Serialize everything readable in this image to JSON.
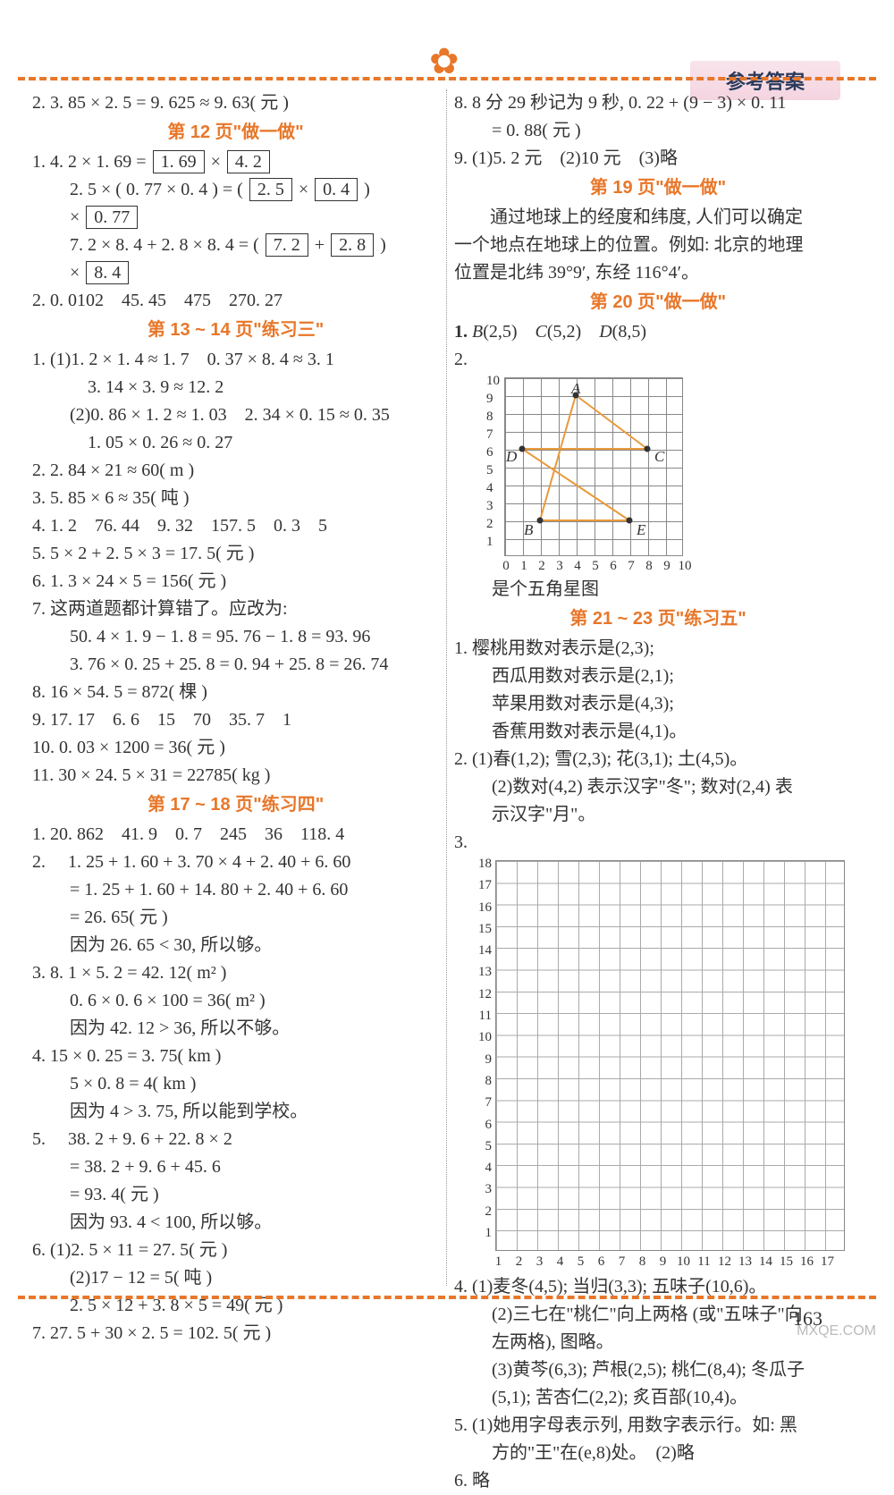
{
  "header": {
    "tag": "参考答案",
    "page_num": "163",
    "watermark": "MXQE.COM"
  },
  "section_titles": {
    "p12": "第 12 页\"做一做\"",
    "p13_14": "第 13 ~ 14 页\"练习三\"",
    "p17_18": "第 17 ~ 18 页\"练习四\"",
    "p19": "第 19 页\"做一做\"",
    "p20": "第 20 页\"做一做\"",
    "p21_23": "第 21 ~ 23 页\"练习五\""
  },
  "left": {
    "l0": "2. 3. 85 × 2. 5 = 9. 625 ≈ 9. 63( 元 )",
    "l1a": "1. 4. 2 × 1. 69 =",
    "l1b": "2. 5 × ( 0. 77 × 0. 4 ) = (",
    "l1c": "7. 2 × 8. 4 + 2. 8 × 8. 4 = (",
    "box_169": "1. 69",
    "box_42": "4. 2",
    "box_25": "2. 5",
    "box_04": "0. 4",
    "box_077": "0. 77",
    "box_72": "7. 2",
    "box_28": "2. 8",
    "box_84": "8. 4",
    "l2": "2. 0. 0102　45. 45　475　270. 27",
    "p13_1_1": "1. (1)1. 2 × 1. 4 ≈ 1. 7　0. 37 × 8. 4 ≈ 3. 1",
    "p13_1_1b": "3. 14 × 3. 9 ≈ 12. 2",
    "p13_1_2": "(2)0. 86 × 1. 2 ≈ 1. 03　2. 34 × 0. 15 ≈ 0. 35",
    "p13_1_2b": "1. 05 × 0. 26 ≈ 0. 27",
    "p13_2": "2. 2. 84 × 21 ≈ 60( m )",
    "p13_3": "3.  5. 85 × 6 ≈ 35( 吨 )",
    "p13_4": "4. 1. 2　76. 44　9. 32　157. 5　0. 3　5",
    "p13_5": "5. 5 × 2 + 2. 5 × 3 = 17. 5( 元 )",
    "p13_6": "6.  1. 3 × 24 × 5 = 156( 元 )",
    "p13_7a": "7. 这两道题都计算错了。应改为:",
    "p13_7b": "50. 4 × 1. 9 − 1. 8 = 95. 76 − 1. 8 = 93. 96",
    "p13_7c": "3. 76 × 0. 25 + 25. 8 = 0. 94 + 25. 8 = 26. 74",
    "p13_8": "8.  16 × 54. 5 = 872( 棵 )",
    "p13_9": "9. 17. 17　6. 6　15　70　35. 7　1",
    "p13_10": "10. 0. 03 × 1200 = 36( 元 )",
    "p13_11": "11. 30 × 24. 5 × 31 = 22785( kg )",
    "p17_1": "1. 20. 862　41. 9　0. 7　245　36　118. 4",
    "p17_2a": "2. 　1. 25 + 1. 60 + 3. 70 × 4 + 2. 40 + 6. 60",
    "p17_2b": "= 1. 25 + 1. 60 + 14. 80 + 2. 40 + 6. 60",
    "p17_2c": "= 26. 65( 元 )",
    "p17_2d": "因为 26. 65 < 30, 所以够。",
    "p17_3a": "3. 8. 1 × 5. 2 = 42. 12( m² )",
    "p17_3b": "0. 6 × 0. 6 × 100 = 36( m² )",
    "p17_3c": "因为 42. 12 > 36, 所以不够。",
    "p17_4a": "4. 15 × 0. 25 = 3. 75( km )",
    "p17_4b": "5 × 0. 8 = 4( km )",
    "p17_4c": "因为 4 > 3. 75, 所以能到学校。",
    "p17_5a": "5. 　38. 2 + 9. 6 + 22. 8 × 2",
    "p17_5b": "= 38. 2 + 9. 6 + 45. 6",
    "p17_5c": "= 93. 4( 元 )",
    "p17_5d": "因为 93. 4 < 100, 所以够。",
    "p17_6a": "6. (1)2. 5 × 11 = 27. 5( 元 )",
    "p17_6b": "(2)17 − 12 = 5( 吨 )",
    "p17_6c": "2. 5 × 12 + 3. 8 × 5 = 49( 元 )",
    "p17_7": "7.  27. 5 + 30 × 2. 5 = 102. 5( 元 )"
  },
  "right": {
    "r8": "8. 8 分 29 秒记为 9 秒, 0. 22 + (9 − 3) × 0. 11",
    "r8b": "= 0. 88( 元 )",
    "r9": "9. (1)5. 2 元　(2)10 元　(3)略",
    "p19_text1": "　　通过地球上的经度和纬度, 人们可以确定",
    "p19_text2": "一个地点在地球上的位置。例如: 北京的地理",
    "p19_text3": "位置是北纬 39°9′, 东经 116°4′。",
    "p20_1": "1. B(2,5)　C(5,2)　D(8,5)",
    "p20_2": "2.",
    "p20_caption": "是个五角星图",
    "p21_1a": "1. 樱桃用数对表示是(2,3);",
    "p21_1b": "西瓜用数对表示是(2,1);",
    "p21_1c": "苹果用数对表示是(4,3);",
    "p21_1d": "香蕉用数对表示是(4,1)。",
    "p21_2a": "2. (1)春(1,2); 雪(2,3); 花(3,1); 土(4,5)。",
    "p21_2b": "(2)数对(4,2) 表示汉字\"冬\"; 数对(2,4) 表",
    "p21_2c": "示汉字\"月\"。",
    "p21_3": "3.",
    "p21_4a": "4. (1)麦冬(4,5); 当归(3,3); 五味子(10,6)。",
    "p21_4b": "(2)三七在\"桃仁\"向上两格 (或\"五味子\"向",
    "p21_4c": "左两格), 图略。",
    "p21_4d": "(3)黄芩(6,3); 芦根(2,5); 桃仁(8,4); 冬瓜子",
    "p21_4e": "(5,1); 苦杏仁(2,2); 炙百部(10,4)。",
    "p21_5a": "5. (1)她用字母表示列, 用数字表示行。如: 黑",
    "p21_5b": "方的\"王\"在(e,8)处。　(2)略",
    "p21_6": "6. 略"
  },
  "star_chart": {
    "grid_size": 10,
    "star_color": "#e89a3a",
    "point_color": "#333333",
    "points": {
      "A": [
        4,
        9
      ],
      "B": [
        2,
        2
      ],
      "C": [
        8,
        6
      ],
      "D": [
        1,
        6
      ],
      "E": [
        7,
        2
      ]
    },
    "yticks": [
      "10",
      "9",
      "8",
      "7",
      "6",
      "5",
      "4",
      "3",
      "2",
      "1"
    ],
    "xticks": [
      "0",
      "1",
      "2",
      "3",
      "4",
      "5",
      "6",
      "7",
      "8",
      "9",
      "10"
    ]
  },
  "big_chart": {
    "cols": 17,
    "rows": 18,
    "yticks": [
      "18",
      "17",
      "16",
      "15",
      "14",
      "13",
      "12",
      "11",
      "10",
      "9",
      "8",
      "7",
      "6",
      "5",
      "4",
      "3",
      "2",
      "1"
    ],
    "xticks": [
      "1",
      "2",
      "3",
      "4",
      "5",
      "6",
      "7",
      "8",
      "9",
      "10",
      "11",
      "12",
      "13",
      "14",
      "15",
      "16",
      "17"
    ]
  }
}
